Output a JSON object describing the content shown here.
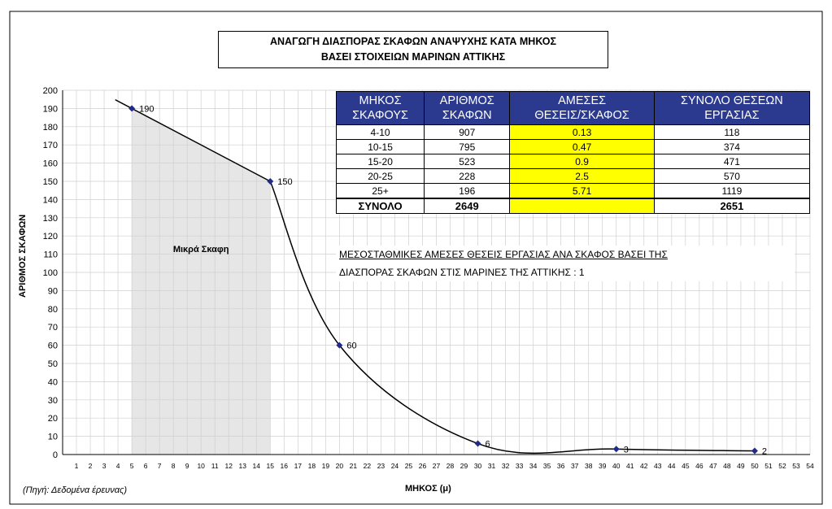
{
  "chart_data": {
    "type": "line",
    "title_line1": "ΑΝΑΓΩΓΗ ΔΙΑΣΠΟΡΑΣ ΣΚΑΦΩΝ ΑΝΑΨΥΧΗΣ ΚΑΤΑ ΜΗΚΟΣ",
    "title_line2": "ΒΑΣΕΙ ΣΤΟΙΧΕΙΩΝ ΜΑΡΙΝΩΝ ΑΤΤΙΚΗΣ",
    "xlabel": "ΜΗΚΟΣ (μ)",
    "ylabel": "ΑΡΙΘΜΟΣ ΣΚΑΦΩΝ",
    "xlim": [
      0,
      54
    ],
    "ylim": [
      0,
      200
    ],
    "y_step": 10,
    "x_step": 1,
    "grid": true,
    "points": [
      {
        "x": 5,
        "y": 190,
        "label": "190"
      },
      {
        "x": 15,
        "y": 150,
        "label": "150"
      },
      {
        "x": 20,
        "y": 60,
        "label": "60"
      },
      {
        "x": 30,
        "y": 6,
        "label": "6"
      },
      {
        "x": 40,
        "y": 3,
        "label": "3"
      },
      {
        "x": 50,
        "y": 2,
        "label": "2"
      }
    ],
    "shaded_region_label": "Μικρά Σκαφη",
    "source": "(Πηγή: Δεδομένα έρευνας)"
  },
  "table": {
    "headers": [
      [
        "ΜΗΚΟΣ",
        "ΣΚΑΦΟΥΣ"
      ],
      [
        "ΑΡΙΘΜΟΣ",
        "ΣΚΑΦΩΝ"
      ],
      [
        "ΑΜΕΣΕΣ",
        "ΘΕΣΕΙΣ/ΣΚΑΦΟΣ"
      ],
      [
        "ΣΥΝΟΛΟ ΘΕΣΕΩΝ",
        "ΕΡΓΑΣΙΑΣ"
      ]
    ],
    "rows": [
      [
        "4-10",
        "907",
        "0.13",
        "118"
      ],
      [
        "10-15",
        "795",
        "0.47",
        "374"
      ],
      [
        "15-20",
        "523",
        "0.9",
        "471"
      ],
      [
        "20-25",
        "228",
        "2.5",
        "570"
      ],
      [
        "25+",
        "196",
        "5.71",
        "1119"
      ]
    ],
    "total": [
      "ΣΥΝΟΛΟ",
      "2649",
      "",
      "2651"
    ]
  },
  "note": {
    "line1": "ΜΕΣΟΣΤΑΘΜΙΚΕΣ ΑΜΕΣΕΣ ΘΕΣΕΙΣ ΕΡΓΑΣΙΑΣ ΑΝΑ ΣΚΑΦΟΣ ΒΑΣΕΙ ΤΗΣ",
    "line2": "ΔΙΑΣΠΟΡΑΣ ΣΚΑΦΩΝ ΣΤΙΣ ΜΑΡΙΝΕΣ ΤΗΣ ΑΤΤΙΚΗΣ : 1"
  },
  "colors": {
    "header_bg": "#2b3a8f",
    "highlight": "#ffff00",
    "marker": "#1f2a8c",
    "shade": "#e6e6e6"
  }
}
